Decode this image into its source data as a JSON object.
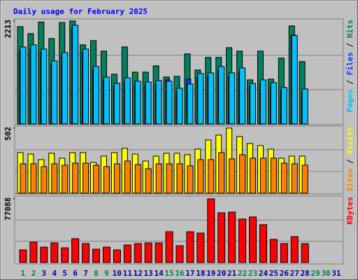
{
  "chart_data": [
    {
      "type": "bar",
      "title": "Daily usage for February 2025",
      "ylim": [
        0,
        2213
      ],
      "yticks": [
        2213
      ],
      "legend_separator": " / ",
      "series": [
        {
          "name": "Hits",
          "color": "#00805c",
          "values": [
            2092,
            1941,
            2190,
            1836,
            2180,
            2213,
            1701,
            1791,
            1565,
            1069,
            1656,
            1114,
            1114,
            1249,
            1008,
            1023,
            1505,
            1159,
            1430,
            1430,
            1640,
            1565,
            948,
            1565,
            963,
            1415,
            2107,
            1340,
            null,
            null,
            null
          ]
        },
        {
          "name": "Files",
          "color": "#0040ff",
          "values": [
            1580,
            1620,
            1530,
            1280,
            1460,
            2040,
            1530,
            1160,
            930,
            800,
            920,
            840,
            830,
            860,
            948,
            700,
            963,
            1000,
            1020,
            1150,
            1020,
            1120,
            800,
            870,
            810,
            710,
            1912,
            690,
            null,
            null,
            null
          ]
        },
        {
          "name": "Pages",
          "color": "#00c0ff",
          "values": [
            1656,
            1701,
            1610,
            1355,
            1535,
            2122,
            1610,
            1234,
            1008,
            873,
            993,
            918,
            903,
            933,
            918,
            768,
            858,
            1084,
            1099,
            1234,
            1099,
            1204,
            873,
            948,
            888,
            783,
            1900,
            753,
            null,
            null,
            null
          ]
        }
      ]
    },
    {
      "type": "bar",
      "ylim": [
        0,
        502
      ],
      "yticks": [
        502
      ],
      "legend_separator": " / ",
      "series": [
        {
          "name": "Visits",
          "color": "#ffff00",
          "values": [
            313,
            302,
            259,
            308,
            270,
            313,
            313,
            238,
            286,
            313,
            346,
            302,
            248,
            286,
            308,
            308,
            297,
            340,
            410,
            448,
            502,
            437,
            383,
            367,
            340,
            270,
            286,
            286,
            null,
            null,
            null
          ]
        },
        {
          "name": "Sites",
          "color": "#ff8000",
          "values": [
            227,
            227,
            205,
            227,
            216,
            232,
            232,
            216,
            205,
            227,
            248,
            221,
            189,
            227,
            227,
            227,
            211,
            259,
            259,
            313,
            265,
            297,
            270,
            270,
            270,
            232,
            227,
            216,
            null,
            null,
            null
          ]
        }
      ]
    },
    {
      "type": "bar",
      "ylim": [
        0,
        77088
      ],
      "yticks": [
        77088
      ],
      "categories": [
        "1",
        "2",
        "3",
        "4",
        "5",
        "6",
        "7",
        "8",
        "9",
        "10",
        "11",
        "12",
        "13",
        "14",
        "15",
        "16",
        "17",
        "18",
        "19",
        "20",
        "21",
        "22",
        "23",
        "24",
        "25",
        "26",
        "27",
        "28",
        "29",
        "30",
        "31"
      ],
      "category_colors": [
        "#00805c",
        "#00805c",
        "#0000a0",
        "#0000a0",
        "#0000a0",
        "#0000a0",
        "#0000a0",
        "#00805c",
        "#00805c",
        "#0000a0",
        "#0000a0",
        "#0000a0",
        "#0000a0",
        "#0000a0",
        "#00805c",
        "#00805c",
        "#0000a0",
        "#0000a0",
        "#0000a0",
        "#0000a0",
        "#0000a0",
        "#00805c",
        "#00805c",
        "#0000a0",
        "#0000a0",
        "#0000a0",
        "#0000a0",
        "#0000a0",
        "#00805c",
        "#00805c",
        "#0000a0"
      ],
      "series": [
        {
          "name": "KBytes",
          "color": "#ff0000",
          "values": [
            15246,
            24563,
            18634,
            23716,
            17787,
            28798,
            22869,
            16093,
            18634,
            15246,
            21175,
            22869,
            23716,
            23716,
            37268,
            20328,
            37268,
            35574,
            77088,
            60137,
            60984,
            52514,
            55055,
            45738,
            27951,
            22869,
            31339,
            22869,
            null,
            null,
            null
          ]
        }
      ]
    }
  ]
}
